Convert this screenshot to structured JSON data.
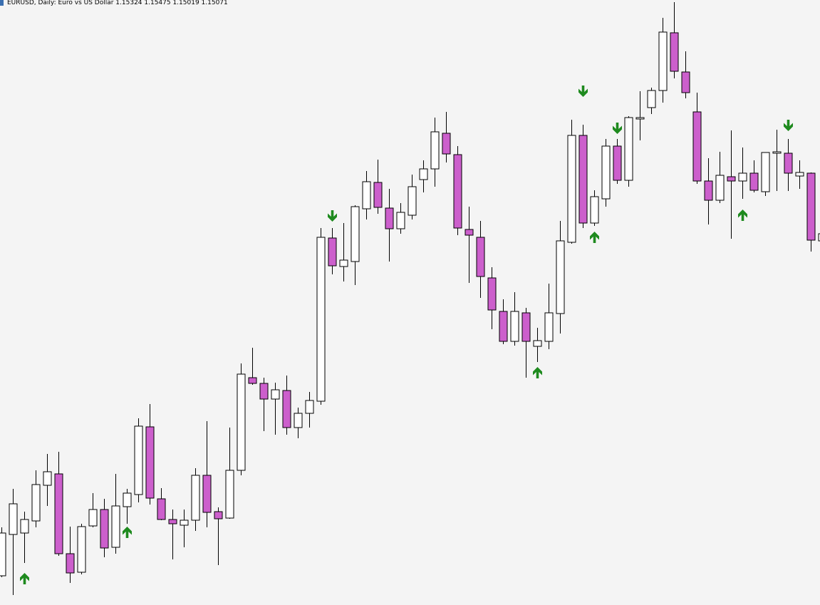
{
  "chart_data": {
    "type": "candlestick",
    "title": "EURUSD, Daily:  Euro vs US Dollar  1.15324 1.15475 1.15019 1.15071",
    "x": [
      0,
      1,
      2,
      3,
      4,
      5,
      6,
      7,
      8,
      9,
      10,
      11,
      12,
      13,
      14,
      15,
      16,
      17,
      18,
      19,
      20,
      21,
      22,
      23,
      24,
      25,
      26,
      27,
      28,
      29,
      30,
      31,
      32,
      33,
      34,
      35,
      36,
      37,
      38,
      39,
      40,
      41,
      42,
      43,
      44,
      45,
      46,
      47,
      48,
      49,
      50,
      51,
      52,
      53,
      54,
      55,
      56,
      57,
      58,
      59,
      60,
      61,
      62,
      63,
      64,
      65,
      66,
      67,
      68,
      69,
      70,
      71,
      72
    ],
    "open": [
      41,
      99,
      101,
      118,
      168,
      184,
      72,
      46,
      111,
      134,
      81,
      138,
      155,
      250,
      149,
      120,
      112,
      119,
      182,
      131,
      122,
      189,
      319,
      311,
      289,
      301,
      249,
      269,
      286,
      515,
      475,
      482,
      556,
      593,
      557,
      528,
      547,
      597,
      612,
      662,
      632,
      527,
      516,
      459,
      412,
      370,
      410,
      363,
      370,
      409,
      509,
      659,
      536,
      570,
      644,
      596,
      682,
      698,
      722,
      803,
      748,
      692,
      595,
      568,
      601,
      595,
      606,
      580,
      634,
      634,
      602,
      606,
      511
    ],
    "high": [
      109,
      163,
      131,
      189,
      212,
      215,
      110,
      114,
      157,
      149,
      184,
      163,
      262,
      282,
      164,
      134,
      134,
      192,
      258,
      137,
      249,
      339,
      361,
      319,
      312,
      322,
      277,
      299,
      529,
      529,
      536,
      561,
      609,
      625,
      584,
      564,
      604,
      624,
      684,
      692,
      644,
      559,
      539,
      474,
      429,
      439,
      417,
      389,
      451,
      539,
      681,
      674,
      582,
      654,
      654,
      686,
      721,
      726,
      824,
      846,
      777,
      719,
      627,
      636,
      666,
      642,
      624,
      635,
      667,
      654,
      624,
      607,
      525
    ],
    "low": [
      39,
      14,
      59,
      109,
      139,
      69,
      31,
      43,
      109,
      67,
      72,
      114,
      144,
      141,
      119,
      64,
      81,
      104,
      109,
      56,
      121,
      182,
      309,
      244,
      239,
      239,
      234,
      249,
      281,
      464,
      454,
      449,
      541,
      549,
      482,
      521,
      541,
      579,
      587,
      621,
      519,
      452,
      431,
      387,
      366,
      364,
      319,
      341,
      359,
      381,
      507,
      529,
      532,
      559,
      591,
      587,
      652,
      689,
      705,
      739,
      711,
      591,
      534,
      564,
      514,
      570,
      579,
      574,
      581,
      581,
      584,
      496,
      508
    ],
    "close": [
      101,
      142,
      120,
      169,
      187,
      72,
      45,
      110,
      134,
      80,
      139,
      157,
      251,
      150,
      120,
      114,
      119,
      182,
      130,
      121,
      189,
      324,
      311,
      289,
      302,
      249,
      269,
      287,
      516,
      476,
      484,
      559,
      594,
      558,
      528,
      551,
      587,
      612,
      664,
      633,
      529,
      519,
      461,
      414,
      370,
      412,
      370,
      371,
      410,
      511,
      659,
      536,
      573,
      644,
      596,
      684,
      684,
      722,
      804,
      749,
      719,
      595,
      568,
      603,
      595,
      606,
      582,
      635,
      636,
      606,
      607,
      512,
      521
    ],
    "bull_color": "#ffffff",
    "bear_color": "#cc5fcc",
    "xlim": [
      -0.125,
      71.8125
    ],
    "ylim": [
      0,
      849
    ],
    "up_arrows": {
      "x": [
        2,
        11,
        47,
        52,
        65
      ],
      "values": [
        37,
        102,
        326,
        516,
        547
      ],
      "color": "#1e8a1e"
    },
    "down_arrows": {
      "x": [
        29,
        51,
        54,
        69
      ],
      "values": [
        546,
        721,
        669,
        673
      ],
      "color": "#1e8a1e"
    }
  }
}
